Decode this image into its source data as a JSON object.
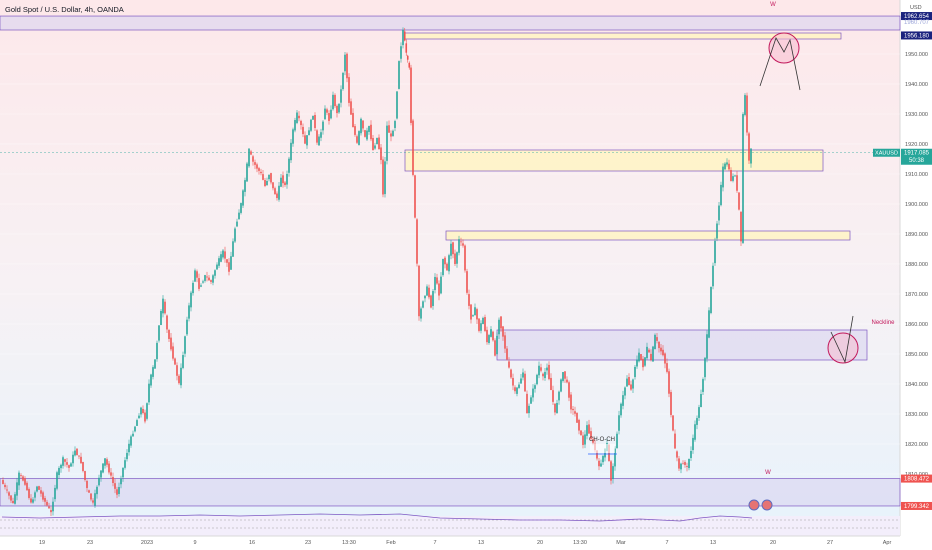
{
  "header": {
    "title": "Gold Spot / U.S. Dollar, 4h, OANDA",
    "currency": "USD"
  },
  "colors": {
    "bull": "#26a69a",
    "bear": "#ef5350",
    "zone_yellow": "#fff3c4",
    "zone_purple": "#d9d4f0",
    "zone_border": "#7e57c2",
    "annotation": "#c2185b",
    "price_tag": "#26a69a",
    "high_tag": "#1a237e",
    "low_tag": "#ef5350"
  },
  "chart_data": {
    "type": "candlestick",
    "ylim": [
      1796,
      1968
    ],
    "y_ticks": [
      {
        "value": 1950,
        "label": "1950.000"
      },
      {
        "value": 1940,
        "label": "1940.000"
      },
      {
        "value": 1930,
        "label": "1930.000"
      },
      {
        "value": 1920,
        "label": "1920.000"
      },
      {
        "value": 1910,
        "label": "1910.000"
      },
      {
        "value": 1900,
        "label": "1900.000"
      },
      {
        "value": 1890,
        "label": "1890.000"
      },
      {
        "value": 1880,
        "label": "1880.000"
      },
      {
        "value": 1870,
        "label": "1870.000"
      },
      {
        "value": 1860,
        "label": "1860.000"
      },
      {
        "value": 1850,
        "label": "1850.000"
      },
      {
        "value": 1840,
        "label": "1840.000"
      },
      {
        "value": 1830,
        "label": "1830.000"
      },
      {
        "value": 1820,
        "label": "1820.000"
      },
      {
        "value": 1810,
        "label": "1810.000"
      }
    ],
    "x_ticks": [
      {
        "label": "19",
        "x": 42
      },
      {
        "label": "23",
        "x": 90
      },
      {
        "label": "2023",
        "x": 147
      },
      {
        "label": "9",
        "x": 195
      },
      {
        "label": "16",
        "x": 252
      },
      {
        "label": "23",
        "x": 308
      },
      {
        "label": "13:30",
        "x": 349
      },
      {
        "label": "Feb",
        "x": 391
      },
      {
        "label": "7",
        "x": 435
      },
      {
        "label": "13",
        "x": 481
      },
      {
        "label": "20",
        "x": 540
      },
      {
        "label": "13:30",
        "x": 580
      },
      {
        "label": "Mar",
        "x": 621
      },
      {
        "label": "7",
        "x": 667
      },
      {
        "label": "13",
        "x": 713
      },
      {
        "label": "20",
        "x": 773
      },
      {
        "label": "27",
        "x": 830
      },
      {
        "label": "Apr",
        "x": 887
      }
    ],
    "price_path": [
      [
        2,
        1808
      ],
      [
        8,
        1804
      ],
      [
        14,
        1800
      ],
      [
        20,
        1810
      ],
      [
        26,
        1807
      ],
      [
        32,
        1800
      ],
      [
        38,
        1806
      ],
      [
        44,
        1802
      ],
      [
        52,
        1797
      ],
      [
        58,
        1810
      ],
      [
        64,
        1815
      ],
      [
        70,
        1812
      ],
      [
        76,
        1818
      ],
      [
        82,
        1814
      ],
      [
        88,
        1805
      ],
      [
        94,
        1800
      ],
      [
        100,
        1809
      ],
      [
        106,
        1815
      ],
      [
        112,
        1809
      ],
      [
        118,
        1803
      ],
      [
        124,
        1812
      ],
      [
        130,
        1820
      ],
      [
        136,
        1826
      ],
      [
        142,
        1832
      ],
      [
        146,
        1828
      ],
      [
        150,
        1840
      ],
      [
        156,
        1848
      ],
      [
        160,
        1860
      ],
      [
        164,
        1868
      ],
      [
        168,
        1858
      ],
      [
        172,
        1852
      ],
      [
        176,
        1846
      ],
      [
        180,
        1840
      ],
      [
        184,
        1850
      ],
      [
        188,
        1862
      ],
      [
        192,
        1870
      ],
      [
        196,
        1878
      ],
      [
        200,
        1872
      ],
      [
        206,
        1876
      ],
      [
        212,
        1874
      ],
      [
        218,
        1880
      ],
      [
        224,
        1884
      ],
      [
        230,
        1878
      ],
      [
        236,
        1892
      ],
      [
        242,
        1900
      ],
      [
        246,
        1908
      ],
      [
        250,
        1918
      ],
      [
        254,
        1914
      ],
      [
        258,
        1912
      ],
      [
        262,
        1910
      ],
      [
        266,
        1906
      ],
      [
        270,
        1910
      ],
      [
        274,
        1905
      ],
      [
        278,
        1902
      ],
      [
        282,
        1909
      ],
      [
        286,
        1906
      ],
      [
        290,
        1915
      ],
      [
        294,
        1925
      ],
      [
        298,
        1930
      ],
      [
        302,
        1926
      ],
      [
        306,
        1920
      ],
      [
        310,
        1925
      ],
      [
        314,
        1930
      ],
      [
        318,
        1920
      ],
      [
        322,
        1924
      ],
      [
        326,
        1932
      ],
      [
        330,
        1928
      ],
      [
        334,
        1936
      ],
      [
        338,
        1930
      ],
      [
        342,
        1938
      ],
      [
        346,
        1950
      ],
      [
        350,
        1934
      ],
      [
        354,
        1926
      ],
      [
        358,
        1920
      ],
      [
        362,
        1928
      ],
      [
        366,
        1922
      ],
      [
        370,
        1926
      ],
      [
        374,
        1918
      ],
      [
        378,
        1922
      ],
      [
        382,
        1915
      ],
      [
        384,
        1903
      ],
      [
        388,
        1926
      ],
      [
        392,
        1922
      ],
      [
        396,
        1928
      ],
      [
        400,
        1948
      ],
      [
        404,
        1958
      ],
      [
        407,
        1950
      ],
      [
        410,
        1945
      ],
      [
        414,
        1910
      ],
      [
        418,
        1880
      ],
      [
        420,
        1862
      ],
      [
        424,
        1868
      ],
      [
        428,
        1872
      ],
      [
        432,
        1866
      ],
      [
        436,
        1876
      ],
      [
        440,
        1870
      ],
      [
        444,
        1882
      ],
      [
        448,
        1878
      ],
      [
        452,
        1887
      ],
      [
        456,
        1880
      ],
      [
        460,
        1888
      ],
      [
        464,
        1886
      ],
      [
        468,
        1870
      ],
      [
        472,
        1862
      ],
      [
        476,
        1865
      ],
      [
        480,
        1858
      ],
      [
        484,
        1862
      ],
      [
        488,
        1854
      ],
      [
        492,
        1858
      ],
      [
        496,
        1850
      ],
      [
        500,
        1862
      ],
      [
        504,
        1856
      ],
      [
        508,
        1848
      ],
      [
        512,
        1842
      ],
      [
        516,
        1837
      ],
      [
        520,
        1840
      ],
      [
        524,
        1844
      ],
      [
        528,
        1830
      ],
      [
        532,
        1836
      ],
      [
        536,
        1840
      ],
      [
        540,
        1846
      ],
      [
        544,
        1842
      ],
      [
        548,
        1846
      ],
      [
        552,
        1838
      ],
      [
        556,
        1830
      ],
      [
        560,
        1838
      ],
      [
        564,
        1844
      ],
      [
        568,
        1840
      ],
      [
        572,
        1832
      ],
      [
        576,
        1830
      ],
      [
        580,
        1825
      ],
      [
        584,
        1820
      ],
      [
        588,
        1826
      ],
      [
        592,
        1822
      ],
      [
        596,
        1818
      ],
      [
        600,
        1812
      ],
      [
        604,
        1816
      ],
      [
        608,
        1820
      ],
      [
        612,
        1808
      ],
      [
        616,
        1818
      ],
      [
        620,
        1830
      ],
      [
        624,
        1836
      ],
      [
        628,
        1842
      ],
      [
        632,
        1838
      ],
      [
        636,
        1846
      ],
      [
        640,
        1850
      ],
      [
        644,
        1846
      ],
      [
        648,
        1852
      ],
      [
        652,
        1848
      ],
      [
        656,
        1856
      ],
      [
        660,
        1852
      ],
      [
        664,
        1850
      ],
      [
        668,
        1844
      ],
      [
        672,
        1830
      ],
      [
        676,
        1818
      ],
      [
        680,
        1812
      ],
      [
        684,
        1814
      ],
      [
        688,
        1812
      ],
      [
        692,
        1818
      ],
      [
        696,
        1826
      ],
      [
        700,
        1832
      ],
      [
        704,
        1842
      ],
      [
        708,
        1856
      ],
      [
        712,
        1872
      ],
      [
        716,
        1888
      ],
      [
        720,
        1900
      ],
      [
        724,
        1912
      ],
      [
        728,
        1914
      ],
      [
        732,
        1908
      ],
      [
        736,
        1910
      ],
      [
        740,
        1898
      ],
      [
        742,
        1887
      ],
      [
        744,
        1930
      ],
      [
        746,
        1936
      ],
      [
        748,
        1924
      ],
      [
        750,
        1914
      ],
      [
        752,
        1918
      ]
    ],
    "rsi_path": [
      [
        2,
        517
      ],
      [
        40,
        518
      ],
      [
        80,
        517
      ],
      [
        120,
        516
      ],
      [
        160,
        516
      ],
      [
        200,
        515
      ],
      [
        240,
        516
      ],
      [
        280,
        515
      ],
      [
        320,
        514
      ],
      [
        360,
        515
      ],
      [
        400,
        514
      ],
      [
        440,
        518
      ],
      [
        480,
        519
      ],
      [
        520,
        520
      ],
      [
        560,
        520
      ],
      [
        600,
        521
      ],
      [
        640,
        519
      ],
      [
        680,
        521
      ],
      [
        700,
        518
      ],
      [
        720,
        516
      ],
      [
        740,
        517
      ],
      [
        752,
        518
      ]
    ],
    "zones": [
      {
        "kind": "yellow",
        "x1": 405,
        "x2": 841,
        "top": 1957,
        "bottom": 1955
      },
      {
        "kind": "yellow",
        "x1": 405,
        "x2": 823,
        "top": 1918,
        "bottom": 1911
      },
      {
        "kind": "yellow",
        "x1": 446,
        "x2": 850,
        "top": 1891,
        "bottom": 1888
      },
      {
        "kind": "purple",
        "x1": 497,
        "x2": 867,
        "top": 1858,
        "bottom": 1848
      },
      {
        "kind": "purple",
        "x1": 0,
        "x2": 900,
        "top": 1962.654,
        "bottom": 1958
      },
      {
        "kind": "purple",
        "x1": 0,
        "x2": 900,
        "top": 1808.472,
        "bottom": 1799.342
      }
    ],
    "circles": [
      {
        "x": 784,
        "y": 1952
      },
      {
        "x": 843,
        "y": 1852
      }
    ],
    "annotations": [
      {
        "text": "W",
        "x": 773,
        "y": 1966
      },
      {
        "text": "Neckline",
        "x": 883,
        "y": 1860
      },
      {
        "text": "CH-O-CH",
        "x": 602,
        "y": 1821
      },
      {
        "text": "W",
        "x": 768,
        "y": 1810
      }
    ],
    "price_tags": {
      "high": "1962.654",
      "level_a": "1960.707",
      "level_b": "1956.180",
      "symbol": "XAUUSD",
      "current": "1917.085",
      "countdown": "50:38",
      "level_c": "1808.472",
      "level_d": "1799.342"
    }
  }
}
